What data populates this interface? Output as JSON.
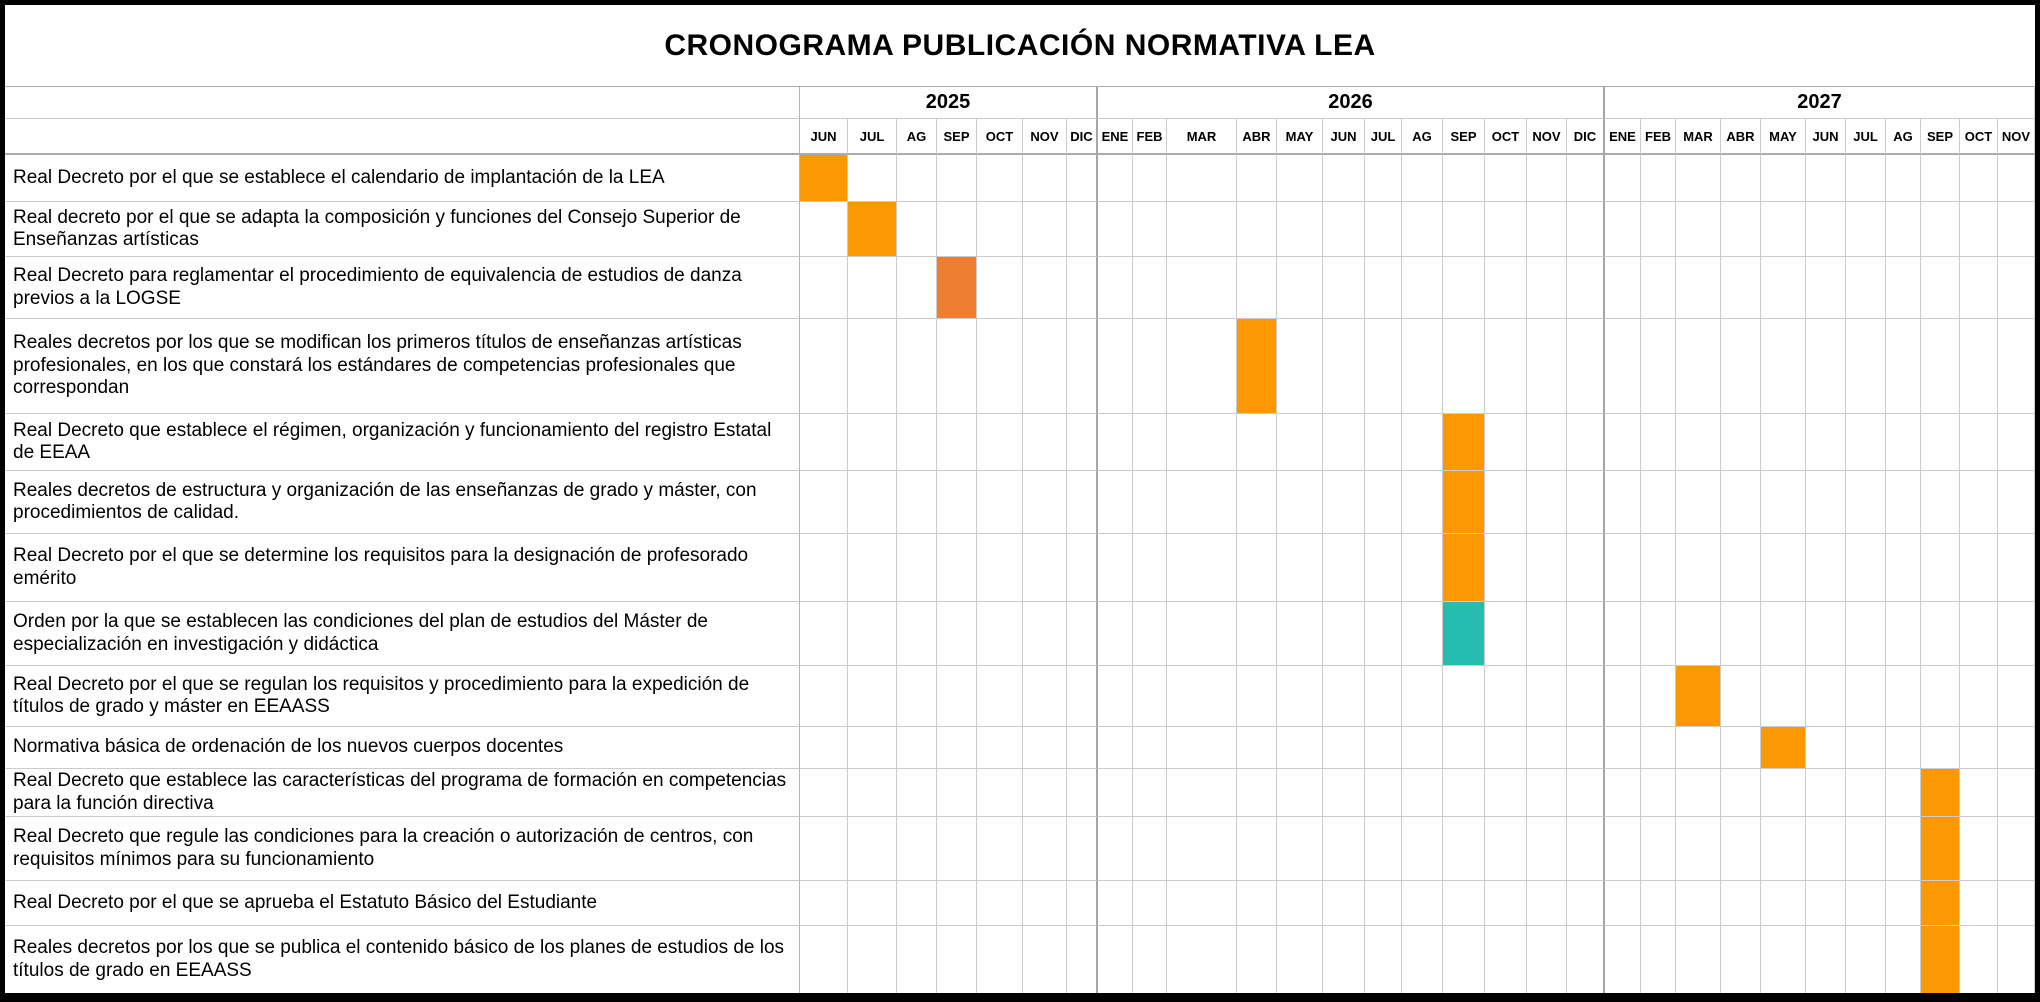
{
  "title": "CRONOGRAMA PUBLICACIÓN NORMATIVA LEA",
  "colors": {
    "orange": "#FB9804",
    "dark_orange": "#ED7D31",
    "teal": "#26BDB0",
    "gridline": "#CCCCCC",
    "section_border": "#A6A6A6",
    "frame": "#000000"
  },
  "timeline": {
    "years": [
      {
        "label": "2025",
        "months": [
          "JUN",
          "JUL",
          "AG",
          "SEP",
          "OCT",
          "NOV",
          "DIC"
        ]
      },
      {
        "label": "2026",
        "months": [
          "ENE",
          "FEB",
          "MAR",
          "ABR",
          "MAY",
          "JUN",
          "JUL",
          "AG",
          "SEP",
          "OCT",
          "NOV",
          "DIC"
        ]
      },
      {
        "label": "2027",
        "months": [
          "ENE",
          "FEB",
          "MAR",
          "ABR",
          "MAY",
          "JUN",
          "JUL",
          "AG",
          "SEP",
          "OCT",
          "NOV"
        ]
      }
    ]
  },
  "rows": [
    {
      "label": "Real Decreto por el que se establece el calendario de implantación de la LEA",
      "year": "2025",
      "month": "JUN",
      "color": "orange"
    },
    {
      "label": "Real decreto por el que se adapta la composición y funciones del Consejo Superior de Enseñanzas artísticas",
      "year": "2025",
      "month": "JUL",
      "color": "orange"
    },
    {
      "label": "Real Decreto para reglamentar el procedimiento de equivalencia de estudios de danza previos a la LOGSE",
      "year": "2025",
      "month": "SEP",
      "color": "dark_orange"
    },
    {
      "label": "Reales decretos por los que se modifican los primeros títulos de enseñanzas artísticas profesionales, en los que constará los estándares de competencias profesionales que correspondan",
      "year": "2026",
      "month": "ABR",
      "color": "orange"
    },
    {
      "label": "Real Decreto que establece el régimen, organización y funcionamiento del registro Estatal de EEAA",
      "year": "2026",
      "month": "SEP",
      "color": "orange"
    },
    {
      "label": "Reales decretos de estructura y organización de las enseñanzas de grado y máster, con procedimientos de calidad.",
      "year": "2026",
      "month": "SEP",
      "color": "orange"
    },
    {
      "label": "Real Decreto por el que se determine los requisitos para la designación de profesorado emérito",
      "year": "2026",
      "month": "SEP",
      "color": "orange"
    },
    {
      "label": "Orden por la que se establecen las condiciones del plan de estudios del Máster de especialización en investigación y didáctica",
      "year": "2026",
      "month": "SEP",
      "color": "teal"
    },
    {
      "label": "Real Decreto por el que se regulan los requisitos y procedimiento para la expedición de títulos de grado y máster en EEAASS",
      "year": "2027",
      "month": "MAR",
      "color": "orange"
    },
    {
      "label": "Normativa básica de ordenación de los nuevos cuerpos docentes",
      "year": "2027",
      "month": "MAY",
      "color": "orange"
    },
    {
      "label": "Real Decreto que establece las características del programa de formación en competencias para la función directiva",
      "year": "2027",
      "month": "SEP",
      "color": "orange"
    },
    {
      "label": "Real Decreto que regule las condiciones para la creación o autorización de centros, con requisitos mínimos para su funcionamiento",
      "year": "2027",
      "month": "SEP",
      "color": "orange"
    },
    {
      "label": "Real Decreto por el que se aprueba el Estatuto Básico del Estudiante",
      "year": "2027",
      "month": "SEP",
      "color": "orange"
    },
    {
      "label": "Reales decretos por los que se publica el contenido básico de los planes de estudios de los títulos de grado en EEAASS",
      "year": "2027",
      "month": "SEP",
      "color": "orange"
    }
  ],
  "chart_data": {
    "type": "table",
    "subtype": "gantt",
    "title": "CRONOGRAMA PUBLICACIÓN NORMATIVA LEA",
    "time_axis": {
      "2025": [
        "JUN",
        "JUL",
        "AG",
        "SEP",
        "OCT",
        "NOV",
        "DIC"
      ],
      "2026": [
        "ENE",
        "FEB",
        "MAR",
        "ABR",
        "MAY",
        "JUN",
        "JUL",
        "AG",
        "SEP",
        "OCT",
        "NOV",
        "DIC"
      ],
      "2027": [
        "ENE",
        "FEB",
        "MAR",
        "ABR",
        "MAY",
        "JUN",
        "JUL",
        "AG",
        "SEP",
        "OCT",
        "NOV"
      ]
    },
    "tasks": [
      {
        "task": "Real Decreto por el que se establece el calendario de implantación de la LEA",
        "scheduled": "JUN 2025",
        "color": "#FB9804"
      },
      {
        "task": "Real decreto por el que se adapta la composición y funciones del Consejo Superior de Enseñanzas artísticas",
        "scheduled": "JUL 2025",
        "color": "#FB9804"
      },
      {
        "task": "Real Decreto para reglamentar el procedimiento de equivalencia de estudios de danza previos a la LOGSE",
        "scheduled": "SEP 2025",
        "color": "#ED7D31"
      },
      {
        "task": "Reales decretos por los que se modifican los primeros títulos de enseñanzas artísticas profesionales, en los que constará los estándares de competencias profesionales que correspondan",
        "scheduled": "ABR 2026",
        "color": "#FB9804"
      },
      {
        "task": "Real Decreto que establece el régimen, organización y funcionamiento del registro Estatal de EEAA",
        "scheduled": "SEP 2026",
        "color": "#FB9804"
      },
      {
        "task": "Reales decretos de estructura y organización de las enseñanzas de grado y máster, con procedimientos de calidad.",
        "scheduled": "SEP 2026",
        "color": "#FB9804"
      },
      {
        "task": "Real Decreto por el que se determine los requisitos para la designación de profesorado emérito",
        "scheduled": "SEP 2026",
        "color": "#FB9804"
      },
      {
        "task": "Orden por la que se establecen las condiciones del plan de estudios del Máster de especialización en investigación y didáctica",
        "scheduled": "SEP 2026",
        "color": "#26BDB0"
      },
      {
        "task": "Real Decreto por el que se regulan los requisitos y procedimiento para la expedición de títulos de grado y máster en EEAASS",
        "scheduled": "MAR 2027",
        "color": "#FB9804"
      },
      {
        "task": "Normativa básica de ordenación de los nuevos cuerpos docentes",
        "scheduled": "MAY 2027",
        "color": "#FB9804"
      },
      {
        "task": "Real Decreto que establece las características del programa de formación en competencias para la función directiva",
        "scheduled": "SEP 2027",
        "color": "#FB9804"
      },
      {
        "task": "Real Decreto que regule las condiciones para la creación o autorización de centros, con requisitos mínimos para su funcionamiento",
        "scheduled": "SEP 2027",
        "color": "#FB9804"
      },
      {
        "task": "Real Decreto por el que se aprueba el Estatuto Básico del Estudiante",
        "scheduled": "SEP 2027",
        "color": "#FB9804"
      },
      {
        "task": "Reales decretos por los que se publica el contenido básico de los planes de estudios de los títulos de grado en EEAASS",
        "scheduled": "SEP 2027",
        "color": "#FB9804"
      }
    ]
  }
}
